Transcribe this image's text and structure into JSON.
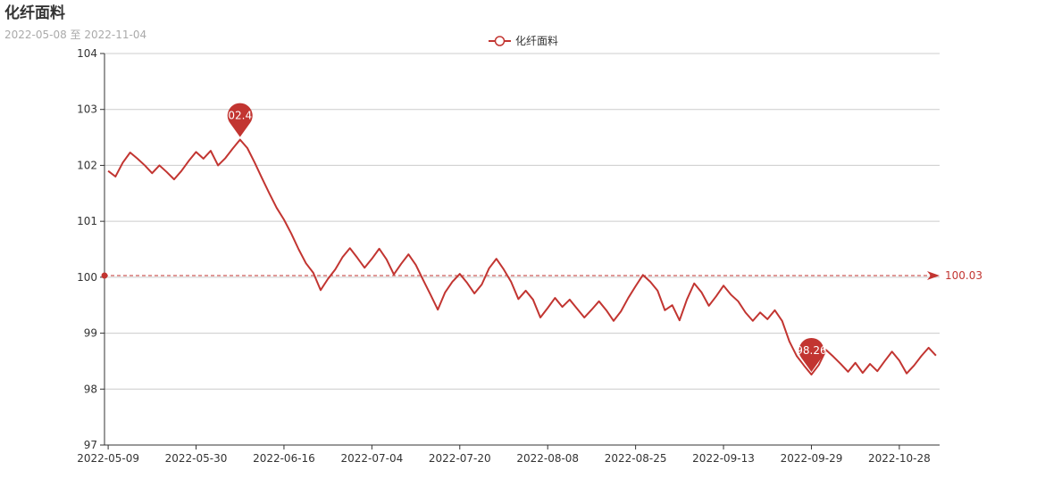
{
  "chart_data": {
    "type": "line",
    "title": "化纤面料",
    "subtitle": "2022-05-08 至 2022-11-04",
    "categories": [
      "2022-05-09",
      null,
      null,
      null,
      null,
      null,
      null,
      null,
      null,
      null,
      null,
      null,
      "2022-05-30",
      null,
      null,
      null,
      null,
      null,
      null,
      null,
      null,
      null,
      null,
      null,
      "2022-06-16",
      null,
      null,
      null,
      null,
      null,
      null,
      null,
      null,
      null,
      null,
      null,
      "2022-07-04",
      null,
      null,
      null,
      null,
      null,
      null,
      null,
      null,
      null,
      null,
      null,
      "2022-07-20",
      null,
      null,
      null,
      null,
      null,
      null,
      null,
      null,
      null,
      null,
      null,
      "2022-08-08",
      null,
      null,
      null,
      null,
      null,
      null,
      null,
      null,
      null,
      null,
      null,
      "2022-08-25",
      null,
      null,
      null,
      null,
      null,
      null,
      null,
      null,
      null,
      null,
      null,
      "2022-09-13",
      null,
      null,
      null,
      null,
      null,
      null,
      null,
      null,
      null,
      null,
      null,
      "2022-09-29",
      null,
      null,
      null,
      null,
      null,
      null,
      null,
      null,
      null,
      null,
      null,
      "2022-10-28",
      null,
      null,
      null,
      null,
      null
    ],
    "series": [
      {
        "name": "化纤面料",
        "color": "#c23531",
        "values": [
          101.9,
          101.8,
          102.05,
          102.23,
          102.12,
          102.0,
          101.86,
          102.0,
          101.88,
          101.75,
          101.9,
          102.08,
          102.24,
          102.12,
          102.26,
          102.0,
          102.13,
          102.3,
          102.46,
          102.31,
          102.05,
          101.77,
          101.5,
          101.24,
          101.03,
          100.78,
          100.5,
          100.25,
          100.08,
          99.77,
          99.97,
          100.14,
          100.36,
          100.52,
          100.35,
          100.17,
          100.33,
          100.51,
          100.32,
          100.05,
          100.24,
          100.41,
          100.22,
          99.95,
          99.69,
          99.42,
          99.73,
          99.92,
          100.06,
          99.9,
          99.71,
          99.87,
          100.16,
          100.33,
          100.14,
          99.92,
          99.61,
          99.76,
          99.6,
          99.28,
          99.45,
          99.63,
          99.47,
          99.6,
          99.44,
          99.28,
          99.42,
          99.57,
          99.41,
          99.22,
          99.39,
          99.63,
          99.84,
          100.04,
          99.92,
          99.76,
          99.41,
          99.5,
          99.23,
          99.6,
          99.89,
          99.73,
          99.49,
          99.66,
          99.85,
          99.69,
          99.57,
          99.37,
          99.22,
          99.37,
          99.25,
          99.41,
          99.22,
          98.85,
          98.59,
          98.42,
          98.26,
          98.43,
          98.7,
          98.58,
          98.45,
          98.31,
          98.47,
          98.29,
          98.45,
          98.32,
          98.5,
          98.67,
          98.51,
          98.28,
          98.42,
          98.59,
          98.74,
          98.6
        ]
      }
    ],
    "max_point": {
      "value": 102.46
    },
    "min_point": {
      "value": 98.26
    },
    "average_line": {
      "value": 100.03
    },
    "ylim": [
      97,
      104
    ],
    "yticks": [
      97,
      98,
      99,
      100,
      101,
      102,
      103,
      104
    ],
    "grid": true
  }
}
